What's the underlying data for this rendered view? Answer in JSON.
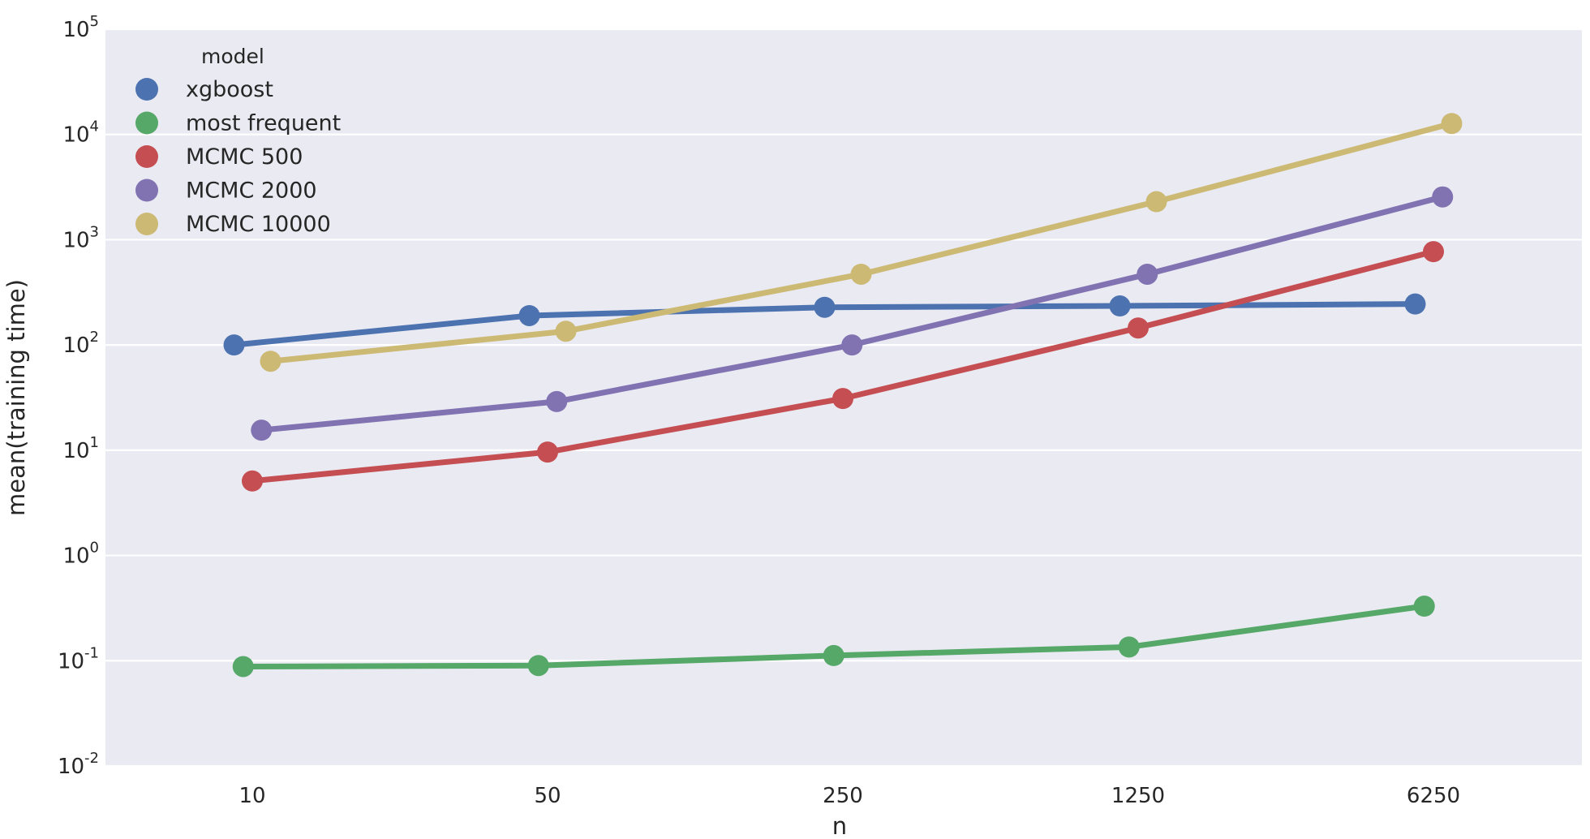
{
  "chart_data": {
    "type": "line",
    "xlabel": "n",
    "ylabel": "mean(training time)",
    "x_categories": [
      "10",
      "50",
      "250",
      "1250",
      "6250"
    ],
    "y_scale": "log",
    "ylim": [
      0.01,
      100000
    ],
    "y_ticks": [
      {
        "value": 0.01,
        "base": "10",
        "exp": "-2"
      },
      {
        "value": 0.1,
        "base": "10",
        "exp": "-1"
      },
      {
        "value": 1,
        "base": "10",
        "exp": "0"
      },
      {
        "value": 10,
        "base": "10",
        "exp": "1"
      },
      {
        "value": 100,
        "base": "10",
        "exp": "2"
      },
      {
        "value": 1000,
        "base": "10",
        "exp": "3"
      },
      {
        "value": 10000,
        "base": "10",
        "exp": "4"
      },
      {
        "value": 100000,
        "base": "10",
        "exp": "5"
      }
    ],
    "grid": true,
    "background": "#EAEAF2",
    "legend": {
      "title": "model",
      "position": "top-left"
    },
    "series": [
      {
        "name": "xgboost",
        "color": "#4C72B0",
        "values": [
          100,
          190,
          228,
          235,
          245
        ]
      },
      {
        "name": "most frequent",
        "color": "#55A868",
        "values": [
          0.088,
          0.09,
          0.112,
          0.135,
          0.33
        ]
      },
      {
        "name": "MCMC 500",
        "color": "#C44E52",
        "values": [
          5.1,
          9.6,
          31,
          145,
          770
        ]
      },
      {
        "name": "MCMC 2000",
        "color": "#8172B2",
        "values": [
          15.5,
          29,
          100,
          470,
          2550
        ]
      },
      {
        "name": "MCMC 10000",
        "color": "#CCB974",
        "values": [
          70,
          135,
          470,
          2300,
          12700
        ]
      }
    ]
  }
}
